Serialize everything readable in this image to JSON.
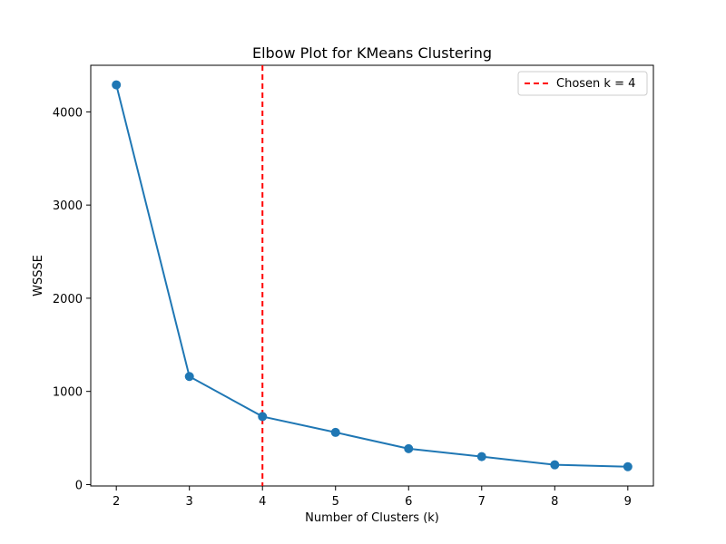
{
  "chart_data": {
    "type": "line",
    "title": "Elbow Plot for KMeans Clustering",
    "xlabel": "Number of Clusters (k)",
    "ylabel": "WSSSE",
    "x": [
      2,
      3,
      4,
      5,
      6,
      7,
      8,
      9
    ],
    "series": [
      {
        "values": [
          4290,
          1160,
          730,
          560,
          385,
          300,
          212,
          192
        ],
        "color": "#1f77b4",
        "marker": "circle"
      }
    ],
    "reference_line": {
      "orientation": "vertical",
      "x": 4,
      "label": "Chosen k = 4",
      "color": "#ff0000",
      "style": "dashed"
    },
    "xticks": [
      "2",
      "3",
      "4",
      "5",
      "6",
      "7",
      "8",
      "9"
    ],
    "yticks": [
      "0",
      "1000",
      "2000",
      "3000",
      "4000"
    ],
    "xlim": [
      1.65,
      9.35
    ],
    "ylim": [
      -15,
      4500
    ],
    "grid": false,
    "legend_position": "top-right"
  }
}
